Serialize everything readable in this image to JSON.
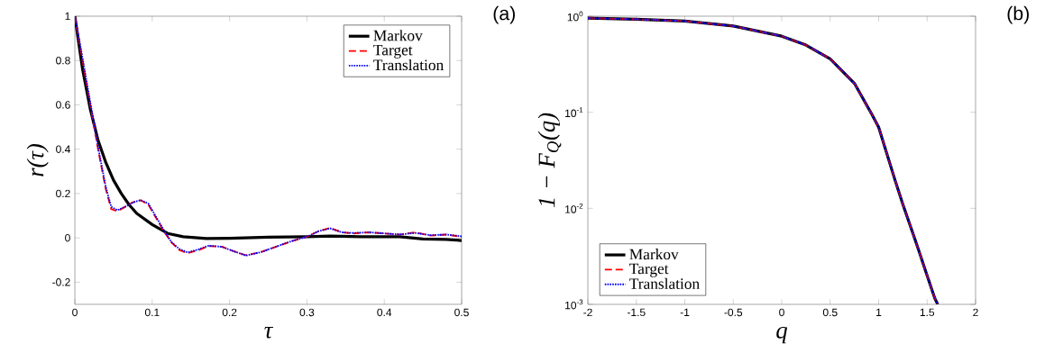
{
  "chart_data": [
    {
      "type": "line",
      "xlabel": "τ",
      "ylabel": "r(τ)",
      "annotations": [
        "(a)"
      ],
      "legend": "top right",
      "grid": false,
      "xlim": [
        0,
        0.5
      ],
      "ylim": [
        -0.3,
        1
      ],
      "xticks": [
        0,
        0.1,
        0.2,
        0.3,
        0.4,
        0.5
      ],
      "yticks": [
        -0.2,
        0,
        0.2,
        0.4,
        0.6,
        0.8,
        1
      ],
      "series": [
        {
          "name": "Markov",
          "color": "#000000",
          "line_style": "solid",
          "x": [
            0,
            0.01,
            0.02,
            0.03,
            0.04,
            0.05,
            0.06,
            0.07,
            0.08,
            0.1,
            0.12,
            0.14,
            0.17,
            0.2,
            0.25,
            0.3,
            0.33,
            0.37,
            0.42,
            0.45,
            0.48,
            0.5
          ],
          "values": [
            1,
            0.76,
            0.58,
            0.44,
            0.34,
            0.26,
            0.2,
            0.15,
            0.11,
            0.06,
            0.02,
            0.005,
            -0.003,
            -0.002,
            0.003,
            0.005,
            0.008,
            0.005,
            0.005,
            -0.005,
            -0.007,
            -0.012
          ]
        },
        {
          "name": "Target",
          "color": "#ff0000",
          "line_style": "dashed",
          "x": [
            0,
            0.01,
            0.02,
            0.03,
            0.04,
            0.047,
            0.055,
            0.065,
            0.075,
            0.085,
            0.095,
            0.105,
            0.115,
            0.125,
            0.135,
            0.146,
            0.16,
            0.173,
            0.19,
            0.205,
            0.221,
            0.24,
            0.26,
            0.28,
            0.3,
            0.315,
            0.33,
            0.345,
            0.36,
            0.38,
            0.4,
            0.42,
            0.44,
            0.46,
            0.48,
            0.5
          ],
          "values": [
            1,
            0.8,
            0.6,
            0.4,
            0.22,
            0.13,
            0.12,
            0.14,
            0.16,
            0.17,
            0.15,
            0.09,
            0.03,
            -0.02,
            -0.055,
            -0.069,
            -0.055,
            -0.037,
            -0.04,
            -0.06,
            -0.078,
            -0.065,
            -0.04,
            -0.015,
            0.005,
            0.03,
            0.045,
            0.025,
            0.02,
            0.025,
            0.02,
            0.015,
            0.025,
            0.01,
            0.015,
            0.005
          ]
        },
        {
          "name": "Translation",
          "color": "#0000ff",
          "line_style": "dotted",
          "x": [
            0,
            0.01,
            0.02,
            0.03,
            0.04,
            0.047,
            0.055,
            0.065,
            0.075,
            0.085,
            0.095,
            0.105,
            0.115,
            0.125,
            0.135,
            0.146,
            0.16,
            0.173,
            0.19,
            0.205,
            0.221,
            0.24,
            0.26,
            0.28,
            0.3,
            0.315,
            0.33,
            0.345,
            0.36,
            0.38,
            0.4,
            0.42,
            0.44,
            0.46,
            0.48,
            0.5
          ],
          "values": [
            1,
            0.81,
            0.61,
            0.41,
            0.23,
            0.14,
            0.125,
            0.14,
            0.16,
            0.17,
            0.155,
            0.095,
            0.035,
            -0.02,
            -0.05,
            -0.066,
            -0.052,
            -0.035,
            -0.04,
            -0.06,
            -0.08,
            -0.065,
            -0.04,
            -0.015,
            0.005,
            0.03,
            0.043,
            0.025,
            0.022,
            0.025,
            0.02,
            0.015,
            0.022,
            0.012,
            0.015,
            0.007
          ]
        }
      ]
    },
    {
      "type": "line",
      "xlabel": "q",
      "ylabel": "1 − F$_{Q}$(q)",
      "annotations": [
        "(b)"
      ],
      "legend": "bottom left",
      "grid": false,
      "log": "y",
      "xlim": [
        -2,
        2
      ],
      "ylim": [
        0.001,
        1
      ],
      "xticks": [
        -2,
        -1.5,
        -1,
        -0.5,
        0,
        0.5,
        1,
        1.5,
        2
      ],
      "yticks": [
        {
          "value": 0.001,
          "label": "10$^{-3}$"
        },
        {
          "value": 0.01,
          "label": "10$^{-2}$"
        },
        {
          "value": 0.1,
          "label": "10$^{-1}$"
        },
        {
          "value": 1,
          "label": "10$^{0}$"
        }
      ],
      "series": [
        {
          "name": "Markov",
          "color": "#000000",
          "line_style": "solid",
          "x": [
            -2,
            -1.5,
            -1,
            -0.5,
            0,
            0.25,
            0.5,
            0.75,
            0.93,
            1.0,
            1.17,
            1.25,
            1.4,
            1.5,
            1.58,
            1.61
          ],
          "values": [
            0.955,
            0.93,
            0.89,
            0.79,
            0.62,
            0.5,
            0.36,
            0.2,
            0.095,
            0.07,
            0.0195,
            0.011,
            0.004,
            0.002,
            0.00115,
            0.001
          ]
        },
        {
          "name": "Target",
          "color": "#ff0000",
          "line_style": "dashed",
          "x": [
            -2,
            -1.5,
            -1,
            -0.5,
            0,
            0.25,
            0.5,
            0.75,
            0.93,
            1.0,
            1.17,
            1.25,
            1.4,
            1.5,
            1.58,
            1.61
          ],
          "values": [
            0.955,
            0.93,
            0.89,
            0.79,
            0.62,
            0.5,
            0.36,
            0.2,
            0.095,
            0.07,
            0.0195,
            0.011,
            0.004,
            0.002,
            0.00115,
            0.001
          ]
        },
        {
          "name": "Translation",
          "color": "#0000ff",
          "line_style": "dotted",
          "x": [
            -2,
            -1.5,
            -1,
            -0.5,
            0,
            0.25,
            0.5,
            0.75,
            0.93,
            1.0,
            1.17,
            1.25,
            1.4,
            1.5,
            1.58,
            1.61
          ],
          "values": [
            0.955,
            0.93,
            0.89,
            0.79,
            0.62,
            0.5,
            0.36,
            0.2,
            0.095,
            0.07,
            0.0195,
            0.011,
            0.004,
            0.002,
            0.00115,
            0.001
          ]
        }
      ]
    }
  ]
}
